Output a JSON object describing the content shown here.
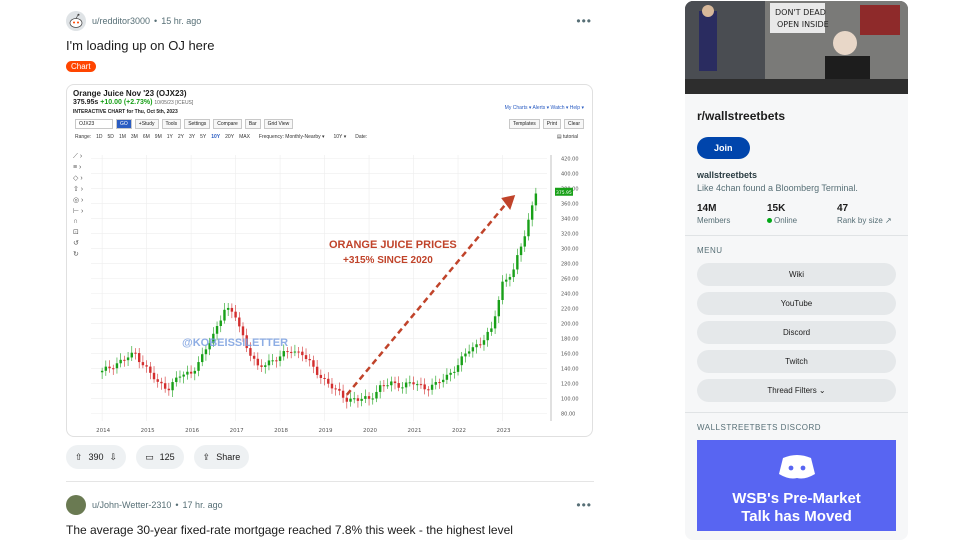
{
  "post1": {
    "author": "u/redditor3000",
    "time": "15 hr. ago",
    "title": "I'm loading up on OJ here",
    "flair": "Chart",
    "votes": "390",
    "comments": "125",
    "share": "Share",
    "chart": {
      "symbol": "Orange Juice Nov '23 (OJX23)",
      "price": "375.95s",
      "change": "+10.00 (+2.73%)",
      "date_stamp": "10/05/23 [ICEUS]",
      "chart_title": "INTERACTIVE CHART for Thu, Oct 5th, 2023",
      "links": "My Charts ▾   Alerts ▾   Watch ▾   Help ▾",
      "ticker_input": "OJX23",
      "go": "GO",
      "toolbar": [
        "+Study",
        "Tools",
        "Settings",
        "Compare",
        "Bar",
        "Grid View"
      ],
      "toolbar_right": [
        "Templates",
        "Print",
        "Clear"
      ],
      "range_label": "Range:",
      "ranges": [
        "1D",
        "5D",
        "1M",
        "3M",
        "6M",
        "9M",
        "1Y",
        "2Y",
        "3Y",
        "5Y",
        "10Y",
        "20Y",
        "MAX"
      ],
      "active_range": "10Y",
      "frequency": "Frequency:  Monthly-Nearby ▾",
      "freq_range": "10Y ▾",
      "date_label": "Date:",
      "tutorial": "▤ tutorial",
      "annotation_line1": "ORANGE JUICE PRICES",
      "annotation_line2": "+315% SINCE 2020",
      "watermark": "@KOBEISSILETTER",
      "last_price_tag": "375.95",
      "x_labels": [
        "2014",
        "2015",
        "2016",
        "2017",
        "2018",
        "2019",
        "2020",
        "2021",
        "2022",
        "2023"
      ],
      "y_labels": [
        "80.00",
        "100.00",
        "120.00",
        "140.00",
        "160.00",
        "180.00",
        "200.00",
        "220.00",
        "240.00",
        "260.00",
        "280.00",
        "300.00",
        "320.00",
        "340.00",
        "360.00",
        "380.00",
        "400.00",
        "420.00"
      ],
      "ymin": 70,
      "ymax": 425,
      "series": [
        [
          "2014-01",
          135
        ],
        [
          "2014-04",
          145
        ],
        [
          "2014-07",
          152
        ],
        [
          "2014-10",
          160
        ],
        [
          "2015-01",
          140
        ],
        [
          "2015-04",
          120
        ],
        [
          "2015-07",
          115
        ],
        [
          "2015-10",
          130
        ],
        [
          "2016-01",
          135
        ],
        [
          "2016-04",
          155
        ],
        [
          "2016-07",
          185
        ],
        [
          "2016-10",
          220
        ],
        [
          "2017-01",
          210
        ],
        [
          "2017-04",
          170
        ],
        [
          "2017-07",
          140
        ],
        [
          "2017-10",
          150
        ],
        [
          "2018-01",
          155
        ],
        [
          "2018-04",
          165
        ],
        [
          "2018-07",
          160
        ],
        [
          "2018-10",
          140
        ],
        [
          "2019-01",
          125
        ],
        [
          "2019-04",
          110
        ],
        [
          "2019-07",
          100
        ],
        [
          "2019-10",
          98
        ],
        [
          "2020-01",
          100
        ],
        [
          "2020-04",
          115
        ],
        [
          "2020-07",
          120
        ],
        [
          "2020-10",
          118
        ],
        [
          "2021-01",
          120
        ],
        [
          "2021-04",
          115
        ],
        [
          "2021-07",
          118
        ],
        [
          "2021-10",
          130
        ],
        [
          "2022-01",
          145
        ],
        [
          "2022-04",
          165
        ],
        [
          "2022-07",
          175
        ],
        [
          "2022-10",
          190
        ],
        [
          "2023-01",
          255
        ],
        [
          "2023-04",
          270
        ],
        [
          "2023-07",
          320
        ],
        [
          "2023-10",
          376
        ]
      ]
    }
  },
  "post2": {
    "author": "u/John-Wetter-2310",
    "time": "17 hr. ago",
    "title": "The average 30-year fixed-rate mortgage reached 7.8% this week - the highest level"
  },
  "sidebar": {
    "name": "r/wallstreetbets",
    "join": "Join",
    "title": "wallstreetbets",
    "description": "Like 4chan found a Bloomberg Terminal.",
    "stats": [
      {
        "num": "14M",
        "label": "Members"
      },
      {
        "num": "15K",
        "label": "Online"
      },
      {
        "num": "47",
        "label": "Rank by size ↗"
      }
    ],
    "menu_label": "MENU",
    "menu": [
      "Wiki",
      "YouTube",
      "Discord",
      "Twitch",
      "Thread Filters ⌄"
    ],
    "discord_label": "WALLSTREETBETS DISCORD",
    "discord_title_1": "WSB's Pre-Market",
    "discord_title_2": "Talk has Moved"
  },
  "colors": {
    "accent": "#0045ac",
    "flair": "#ff4500",
    "up": "#18a018",
    "down": "#d32f2f",
    "arrow": "#c0432a"
  }
}
